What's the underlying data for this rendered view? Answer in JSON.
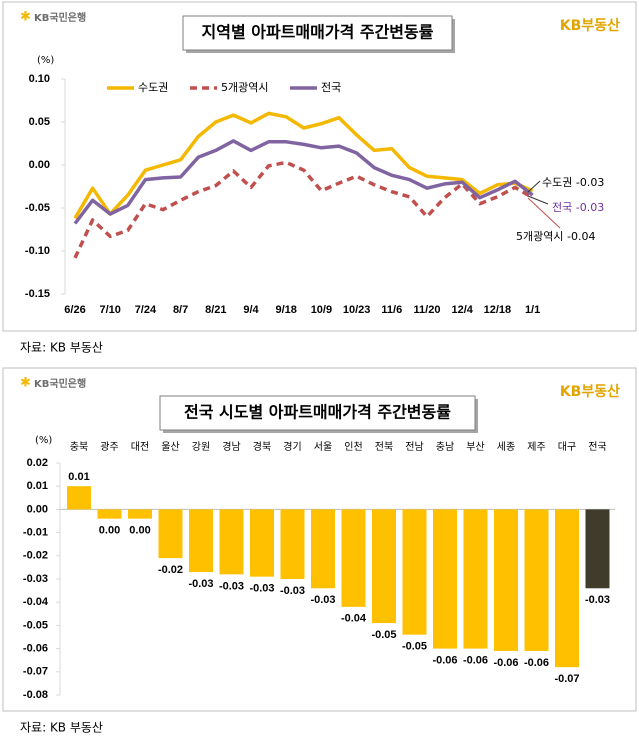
{
  "chart_data": [
    {
      "type": "line",
      "title": "지역별 아파트매매가격 주간변동률",
      "y_unit": "(%)",
      "bank_logo": "KB국민은행",
      "brand_logo": "KB부동산",
      "source": "자료: KB 부동산",
      "categories": [
        "6/26",
        null,
        "7/10",
        null,
        "7/24",
        null,
        "8/7",
        null,
        "8/21",
        null,
        "9/4",
        null,
        "9/18",
        null,
        "10/9",
        null,
        "10/23",
        null,
        "11/6",
        null,
        "11/20",
        null,
        "12/4",
        null,
        "12/18",
        null,
        "1/1"
      ],
      "series": [
        {
          "name": "수도권",
          "color": "#f5b800",
          "style": "solid",
          "values": [
            -0.062,
            -0.027,
            -0.057,
            -0.035,
            -0.006,
            0.0,
            0.006,
            0.033,
            0.05,
            0.058,
            0.049,
            0.06,
            0.056,
            0.043,
            0.048,
            0.055,
            0.035,
            0.017,
            0.019,
            -0.003,
            -0.013,
            -0.015,
            -0.017,
            -0.033,
            -0.023,
            -0.021,
            -0.03
          ]
        },
        {
          "name": "5개광역시",
          "color": "#c0504d",
          "style": "dashed",
          "values": [
            -0.108,
            -0.064,
            -0.083,
            -0.076,
            -0.045,
            -0.052,
            -0.041,
            -0.031,
            -0.024,
            -0.007,
            -0.026,
            -0.001,
            0.003,
            -0.006,
            -0.03,
            -0.021,
            -0.013,
            -0.023,
            -0.031,
            -0.037,
            -0.06,
            -0.038,
            -0.022,
            -0.045,
            -0.037,
            -0.026,
            -0.038
          ]
        },
        {
          "name": "전국",
          "color": "#8064a2",
          "style": "solid",
          "values": [
            -0.068,
            -0.041,
            -0.057,
            -0.047,
            -0.017,
            -0.015,
            -0.014,
            0.009,
            0.017,
            0.028,
            0.017,
            0.027,
            0.027,
            0.024,
            0.02,
            0.022,
            0.014,
            -0.003,
            -0.012,
            -0.017,
            -0.027,
            -0.022,
            -0.02,
            -0.038,
            -0.029,
            -0.019,
            -0.035
          ]
        }
      ],
      "annotations": [
        "수도권 -0.03",
        "전국 -0.03",
        "5개광역시 -0.04"
      ],
      "ylim": [
        -0.15,
        0.1
      ],
      "yticks": [
        {
          "value": 0.1,
          "label": "0.10"
        },
        0.05,
        {
          "value": 0,
          "label": "0.00"
        },
        -0.05,
        {
          "value": -0.1,
          "label": "-0.10"
        },
        -0.15
      ],
      "grid": false
    },
    {
      "type": "bar",
      "title": "전국 시도별 아파트매매가격 주간변동률",
      "y_unit": "(%)",
      "bank_logo": "KB국민은행",
      "brand_logo": "KB부동산",
      "source": "자료: KB 부동산",
      "categories": [
        "충북",
        "광주",
        "대전",
        "울산",
        "강원",
        "경남",
        "경북",
        "경기",
        "서울",
        "인천",
        "전북",
        "전남",
        "충남",
        "부산",
        "세종",
        "제주",
        "대구",
        "전국"
      ],
      "values": [
        0.01,
        -0.004,
        -0.004,
        -0.021,
        -0.027,
        -0.028,
        -0.029,
        -0.03,
        -0.034,
        -0.042,
        -0.049,
        -0.054,
        -0.06,
        -0.06,
        -0.061,
        -0.061,
        -0.068,
        -0.034
      ],
      "value_labels": [
        "0.01",
        "0.00",
        "0.00",
        "-0.02",
        "-0.03",
        "-0.03",
        "-0.03",
        "-0.03",
        "-0.03",
        "-0.04",
        "-0.05",
        "-0.05",
        "-0.06",
        "-0.06",
        "-0.06",
        "-0.06",
        "-0.07",
        "-0.03"
      ],
      "colors": [
        "#ffc000",
        "#ffc000",
        "#ffc000",
        "#ffc000",
        "#ffc000",
        "#ffc000",
        "#ffc000",
        "#ffc000",
        "#ffc000",
        "#ffc000",
        "#ffc000",
        "#ffc000",
        "#ffc000",
        "#ffc000",
        "#ffc000",
        "#ffc000",
        "#ffc000",
        "#403c2c"
      ],
      "ylim": [
        -0.08,
        0.02
      ],
      "yticks": [
        0.02,
        0.01,
        {
          "value": 0,
          "label": "0.00"
        },
        -0.01,
        -0.02,
        -0.03,
        -0.04,
        -0.05,
        -0.06,
        -0.07,
        -0.08
      ],
      "grid": false
    }
  ]
}
